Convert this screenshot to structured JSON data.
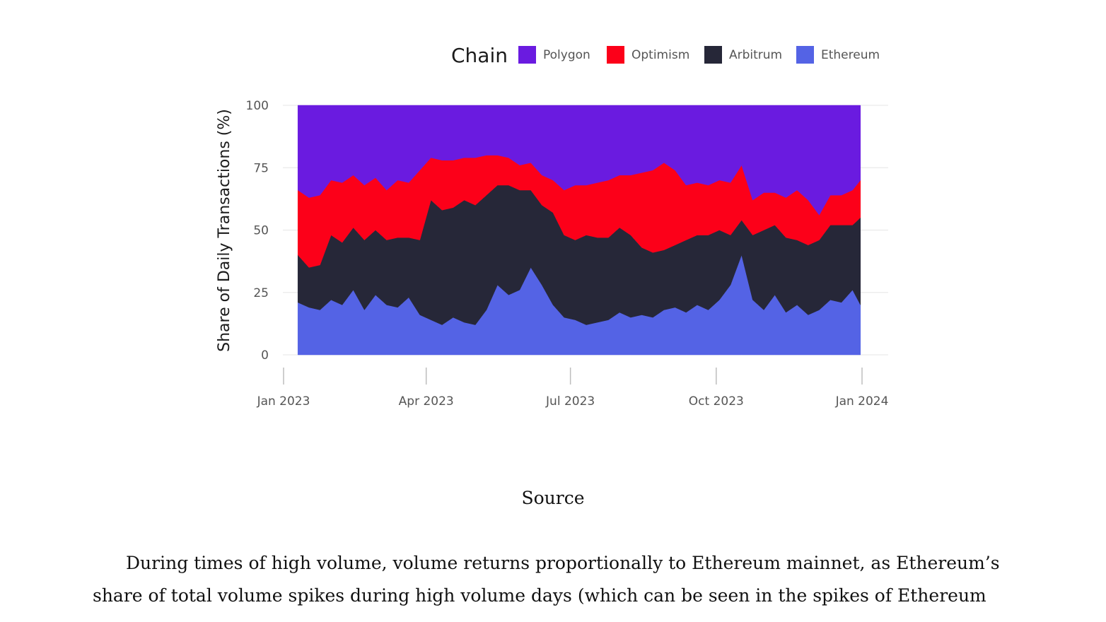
{
  "chart_data": {
    "type": "area",
    "stacked": true,
    "normalized_percent": true,
    "ylabel": "Share of Daily Transactions (%)",
    "xlabel": "",
    "ylim": [
      0,
      100
    ],
    "yticks": [
      0,
      25,
      50,
      75,
      100
    ],
    "x_range": [
      "2023-01-01",
      "2024-01-01"
    ],
    "xticks": [
      {
        "date": "2023-01-01",
        "label": "Jan 2023"
      },
      {
        "date": "2023-04-01",
        "label": "Apr 2023"
      },
      {
        "date": "2023-07-01",
        "label": "Jul 2023"
      },
      {
        "date": "2023-10-01",
        "label": "Oct 2023"
      },
      {
        "date": "2024-01-01",
        "label": "Jan 2024"
      }
    ],
    "grid": true,
    "legend": {
      "title": "Chain",
      "placement": "top-right",
      "entries": [
        {
          "name": "Polygon",
          "color": "#6a1be0"
        },
        {
          "name": "Optimism",
          "color": "#fc0019"
        },
        {
          "name": "Arbitrum",
          "color": "#262738"
        },
        {
          "name": "Ethereum",
          "color": "#5463e5"
        }
      ]
    },
    "x": [
      "2023-01-10",
      "2023-01-17",
      "2023-01-24",
      "2023-01-31",
      "2023-02-07",
      "2023-02-14",
      "2023-02-21",
      "2023-02-28",
      "2023-03-07",
      "2023-03-14",
      "2023-03-21",
      "2023-03-28",
      "2023-04-04",
      "2023-04-11",
      "2023-04-18",
      "2023-04-25",
      "2023-05-02",
      "2023-05-09",
      "2023-05-16",
      "2023-05-23",
      "2023-05-30",
      "2023-06-06",
      "2023-06-13",
      "2023-06-20",
      "2023-06-27",
      "2023-07-04",
      "2023-07-11",
      "2023-07-18",
      "2023-07-25",
      "2023-08-01",
      "2023-08-08",
      "2023-08-15",
      "2023-08-22",
      "2023-08-29",
      "2023-09-05",
      "2023-09-12",
      "2023-09-19",
      "2023-09-26",
      "2023-10-03",
      "2023-10-10",
      "2023-10-17",
      "2023-10-24",
      "2023-10-31",
      "2023-11-07",
      "2023-11-14",
      "2023-11-21",
      "2023-11-28",
      "2023-12-05",
      "2023-12-12",
      "2023-12-19",
      "2023-12-26",
      "2023-12-31"
    ],
    "series": [
      {
        "name": "Ethereum",
        "color": "#5463e5",
        "values": [
          21,
          19,
          18,
          22,
          20,
          26,
          18,
          24,
          20,
          19,
          23,
          16,
          14,
          12,
          15,
          13,
          12,
          18,
          28,
          24,
          26,
          35,
          28,
          20,
          15,
          14,
          12,
          13,
          14,
          17,
          15,
          16,
          15,
          18,
          19,
          17,
          20,
          18,
          22,
          28,
          40,
          22,
          18,
          24,
          17,
          20,
          16,
          18,
          22,
          21,
          26,
          20
        ]
      },
      {
        "name": "Arbitrum",
        "color": "#262738",
        "values": [
          19,
          16,
          18,
          26,
          25,
          25,
          28,
          26,
          26,
          28,
          24,
          30,
          48,
          46,
          44,
          49,
          48,
          46,
          40,
          44,
          40,
          31,
          32,
          37,
          33,
          32,
          36,
          34,
          33,
          34,
          33,
          27,
          26,
          24,
          25,
          29,
          28,
          30,
          28,
          20,
          14,
          26,
          32,
          28,
          30,
          26,
          28,
          28,
          30,
          31,
          26,
          35
        ]
      },
      {
        "name": "Optimism",
        "color": "#fc0019",
        "values": [
          26,
          28,
          28,
          22,
          24,
          21,
          22,
          21,
          20,
          23,
          22,
          28,
          17,
          20,
          19,
          17,
          19,
          16,
          12,
          11,
          10,
          11,
          12,
          13,
          18,
          22,
          20,
          22,
          23,
          21,
          24,
          30,
          33,
          35,
          30,
          22,
          21,
          20,
          20,
          21,
          22,
          14,
          15,
          13,
          16,
          20,
          18,
          10,
          12,
          12,
          14,
          15
        ]
      },
      {
        "name": "Polygon",
        "color": "#6a1be0",
        "values": [
          34,
          37,
          36,
          30,
          31,
          28,
          32,
          29,
          34,
          30,
          31,
          26,
          21,
          22,
          22,
          21,
          21,
          20,
          20,
          21,
          24,
          23,
          28,
          30,
          34,
          32,
          32,
          31,
          30,
          28,
          28,
          27,
          26,
          23,
          26,
          32,
          31,
          32,
          30,
          31,
          24,
          38,
          35,
          35,
          37,
          34,
          38,
          44,
          36,
          36,
          34,
          30
        ]
      }
    ]
  },
  "caption": "Source",
  "paragraph": {
    "line1": "During times of high volume, volume returns proportionally to Ethereum mainnet, as Ethereum’s",
    "line2": "share of total volume spikes during high volume days (which can be seen in the spikes of Ethereum"
  }
}
